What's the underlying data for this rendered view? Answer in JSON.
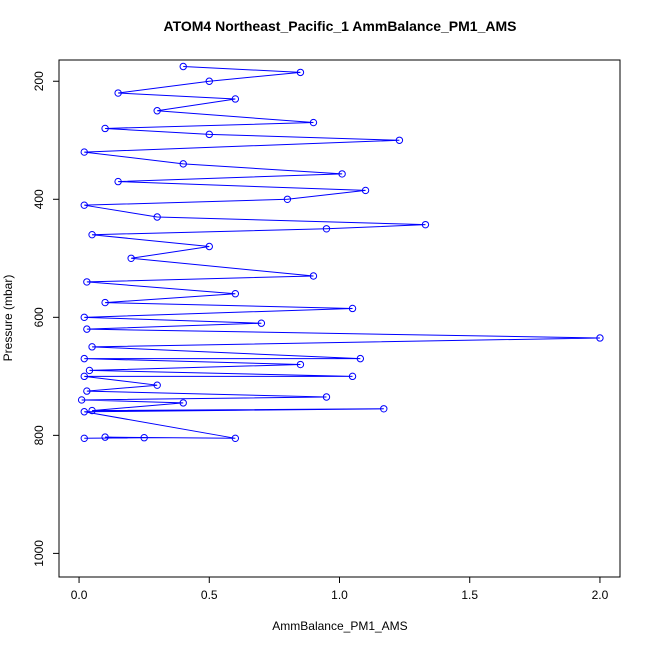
{
  "chart_data": {
    "type": "line",
    "marker": "circle",
    "title": "ATOM4 Northeast_Pacific_1 AmmBalance_PM1_AMS",
    "x_label": "AmmBalance_PM1_AMS",
    "y_label": "Pressure (mbar)",
    "xlim": [
      -0.077,
      2.077
    ],
    "ylim": [
      1040,
      164
    ],
    "invert_y": true,
    "xticks": [
      {
        "value": 0,
        "label": "0.0"
      },
      0.5,
      {
        "value": 1,
        "label": "1.0"
      },
      1.5,
      {
        "value": 2,
        "label": "2.0"
      }
    ],
    "yticks": [
      200,
      400,
      600,
      800,
      1000
    ],
    "grid": false,
    "series": [
      {
        "color": "#0000ff",
        "x": [
          0.02,
          0.25,
          0.1,
          0.6,
          0.02,
          1.17,
          0.05,
          0.4,
          0.01,
          0.95,
          0.03,
          0.3,
          0.02,
          1.05,
          0.04,
          0.85,
          0.02,
          1.08,
          0.05,
          2.0,
          0.03,
          0.7,
          0.02,
          1.05,
          0.1,
          0.6,
          0.03,
          0.9,
          0.2,
          0.5,
          0.05,
          0.95,
          1.33,
          0.3,
          0.02,
          0.8,
          1.1,
          0.15,
          1.01,
          0.4,
          0.02,
          1.23,
          0.5,
          0.1,
          0.9,
          0.3,
          0.6,
          0.15,
          0.5,
          0.85,
          0.4
        ],
        "values": [
          805,
          804,
          803,
          805,
          760,
          755,
          758,
          745,
          740,
          735,
          725,
          715,
          700,
          700,
          690,
          680,
          670,
          670,
          650,
          635,
          620,
          610,
          600,
          585,
          575,
          560,
          540,
          530,
          500,
          480,
          460,
          450,
          443,
          430,
          410,
          400,
          385,
          370,
          357,
          340,
          320,
          300,
          290,
          280,
          270,
          250,
          230,
          220,
          200,
          185,
          175
        ]
      }
    ]
  }
}
